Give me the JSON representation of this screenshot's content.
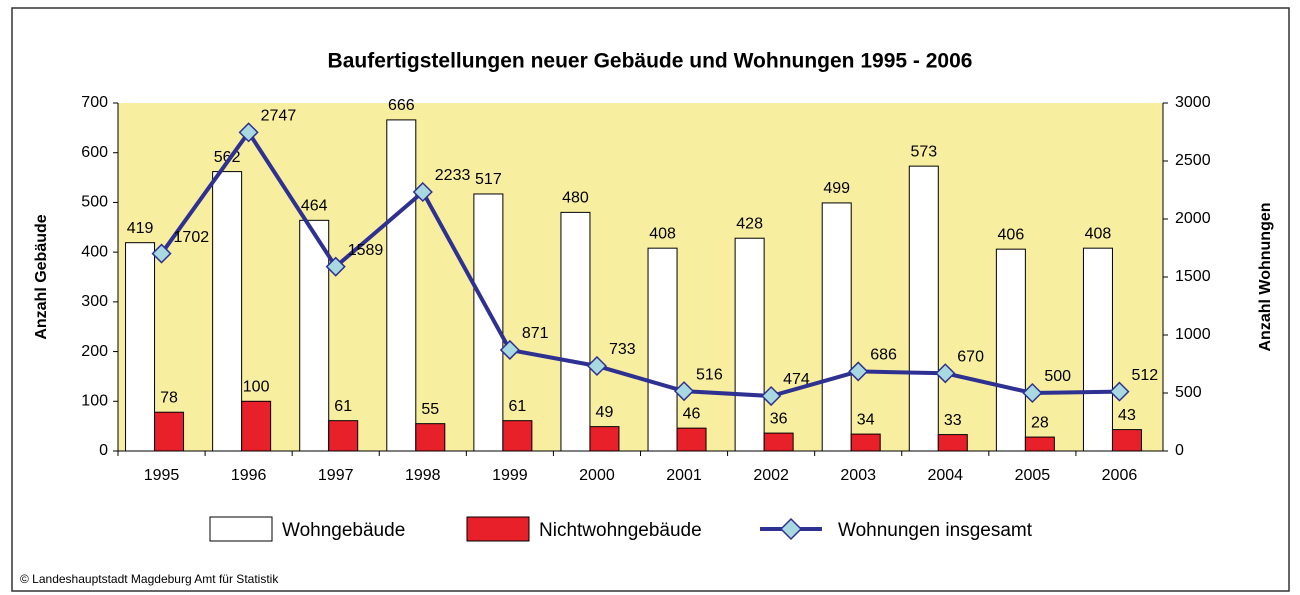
{
  "chart_data": {
    "type": "bar-line",
    "title": "Baufertigstellungen neuer Gebäude und Wohnungen 1995 - 2006",
    "y_label": "Anzahl Gebäude",
    "y2_label": "Anzahl Wohnungen",
    "source": "© Landeshauptstadt Magdeburg  Amt für Statistik",
    "categories": [
      "1995",
      "1996",
      "1997",
      "1998",
      "1999",
      "2000",
      "2001",
      "2002",
      "2003",
      "2004",
      "2005",
      "2006"
    ],
    "ylim": [
      0,
      700
    ],
    "yticks": [
      0,
      100,
      200,
      300,
      400,
      500,
      600,
      700
    ],
    "y2lim": [
      0,
      3000
    ],
    "y2ticks": [
      0,
      500,
      1000,
      1500,
      2000,
      2500,
      3000
    ],
    "series": [
      {
        "name": "Wohngebäude",
        "color": "#ffffff",
        "type": "bar",
        "values": [
          419,
          562,
          464,
          666,
          517,
          480,
          408,
          428,
          499,
          573,
          406,
          408
        ]
      },
      {
        "name": "Nichtwohngebäude",
        "color": "#e8202a",
        "type": "bar",
        "values": [
          78,
          100,
          61,
          55,
          61,
          49,
          46,
          36,
          34,
          33,
          28,
          43
        ]
      },
      {
        "name": "Wohnungen insgesamt",
        "color": "#2e3192",
        "marker_color": "#a8d8e0",
        "type": "line",
        "axis": "y2",
        "values": [
          1702,
          2747,
          1589,
          2233,
          871,
          733,
          516,
          474,
          686,
          670,
          500,
          512
        ]
      }
    ]
  }
}
